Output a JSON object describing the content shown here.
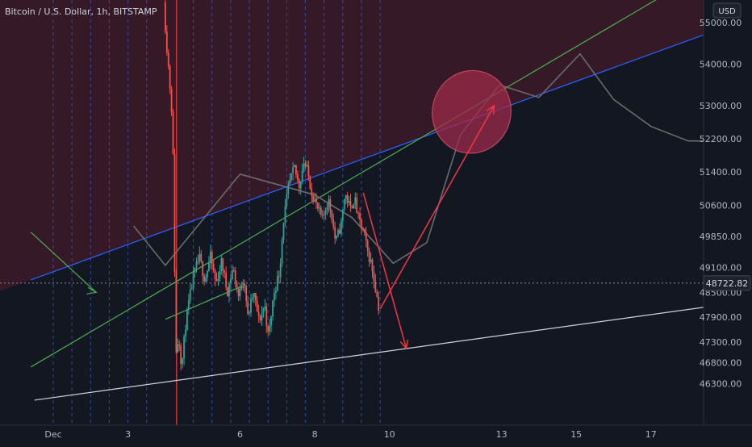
{
  "header": {
    "symbol_title": "Bitcoin / U.S. Dollar, 1h, BITSTAMP"
  },
  "currency_badge": "USD",
  "last_price": {
    "label": "48722.82",
    "value": 48722.82
  },
  "colors": {
    "background": "#131722",
    "shaded_zone": "#3a1a28",
    "candle_up": "#26a69a",
    "candle_down": "#ef5350",
    "blue_line": "#2962ff",
    "green_line": "#4caf50",
    "white_line": "#d1d4dc",
    "red_arrow": "#f23645",
    "projection_line": "#6b6b6b",
    "ellipse_fill": "#9c2a4b",
    "ellipse_stroke": "#c2455f",
    "vertical_guides": "#3a5fcd",
    "red_vertical": "#e53935",
    "last_price_bg": "#1e222d"
  },
  "chart_data": {
    "type": "candlestick",
    "title": "Bitcoin / U.S. Dollar, 1h, BITSTAMP",
    "x_tick_labels": [
      {
        "label": "Dec",
        "day": 1
      },
      {
        "label": "3",
        "day": 3
      },
      {
        "label": "6",
        "day": 6
      },
      {
        "label": "8",
        "day": 8
      },
      {
        "label": "10",
        "day": 10
      },
      {
        "label": "13",
        "day": 13
      },
      {
        "label": "15",
        "day": 15
      },
      {
        "label": "17",
        "day": 17
      }
    ],
    "y_ticks": [
      {
        "label": "55000.00",
        "value": 55000
      },
      {
        "label": "54000.00",
        "value": 54000
      },
      {
        "label": "53000.00",
        "value": 53000
      },
      {
        "label": "52200.00",
        "value": 52200
      },
      {
        "label": "51400.00",
        "value": 51400
      },
      {
        "label": "50600.00",
        "value": 50600
      },
      {
        "label": "49850.00",
        "value": 49850
      },
      {
        "label": "49100.00",
        "value": 49100
      },
      {
        "label": "48500.00",
        "value": 48500
      },
      {
        "label": "47900.00",
        "value": 47900
      },
      {
        "label": "47300.00",
        "value": 47300
      },
      {
        "label": "46800.00",
        "value": 46800
      },
      {
        "label": "46300.00",
        "value": 46300
      }
    ],
    "price_path": [
      [
        4.0,
        55500
      ],
      [
        4.05,
        54800
      ],
      [
        4.1,
        54200
      ],
      [
        4.14,
        53800
      ],
      [
        4.18,
        53300
      ],
      [
        4.22,
        52800
      ],
      [
        4.26,
        51400
      ],
      [
        4.32,
        46950
      ],
      [
        4.4,
        47450
      ],
      [
        4.48,
        46700
      ],
      [
        4.58,
        47700
      ],
      [
        4.68,
        48300
      ],
      [
        4.8,
        48900
      ],
      [
        4.95,
        49350
      ],
      [
        5.1,
        48800
      ],
      [
        5.25,
        49350
      ],
      [
        5.4,
        48700
      ],
      [
        5.55,
        49250
      ],
      [
        5.7,
        48500
      ],
      [
        5.85,
        49100
      ],
      [
        6.0,
        48400
      ],
      [
        6.15,
        48900
      ],
      [
        6.25,
        47900
      ],
      [
        6.4,
        48500
      ],
      [
        6.55,
        47800
      ],
      [
        6.7,
        48200
      ],
      [
        6.8,
        47400
      ],
      [
        6.95,
        48500
      ],
      [
        7.1,
        49000
      ],
      [
        7.2,
        50200
      ],
      [
        7.35,
        51100
      ],
      [
        7.5,
        51500
      ],
      [
        7.62,
        51050
      ],
      [
        7.75,
        51650
      ],
      [
        7.85,
        51400
      ],
      [
        7.95,
        50950
      ],
      [
        8.1,
        50550
      ],
      [
        8.25,
        50250
      ],
      [
        8.4,
        50750
      ],
      [
        8.5,
        50350
      ],
      [
        8.6,
        49700
      ],
      [
        8.75,
        50150
      ],
      [
        8.85,
        50900
      ],
      [
        9.0,
        50500
      ],
      [
        9.1,
        50800
      ],
      [
        9.2,
        50300
      ],
      [
        9.35,
        49950
      ],
      [
        9.45,
        49500
      ],
      [
        9.55,
        49200
      ],
      [
        9.65,
        48700
      ],
      [
        9.75,
        48150
      ]
    ],
    "projection_path": [
      [
        3.15,
        50100
      ],
      [
        4.0,
        49150
      ],
      [
        6.0,
        51350
      ],
      [
        8.0,
        50850
      ],
      [
        9.0,
        50300
      ],
      [
        10.1,
        49200
      ],
      [
        11.0,
        49700
      ],
      [
        11.9,
        52300
      ],
      [
        12.95,
        53500
      ],
      [
        14.0,
        53200
      ],
      [
        15.1,
        54250
      ],
      [
        16.0,
        53150
      ],
      [
        17.0,
        52500
      ],
      [
        18.0,
        52150
      ],
      [
        18.4,
        52150
      ]
    ],
    "trend_lines": [
      {
        "color": "blue",
        "points": [
          [
            0.4,
            48800
          ],
          [
            19.3,
            55000
          ]
        ]
      },
      {
        "color": "green",
        "points": [
          [
            0.4,
            46700
          ],
          [
            17.6,
            55800
          ]
        ]
      },
      {
        "color": "white",
        "points": [
          [
            0.5,
            45900
          ],
          [
            19.3,
            48250
          ]
        ]
      }
    ],
    "green_arrow": {
      "from": [
        0.4,
        49950
      ],
      "to": [
        2.15,
        48500
      ]
    },
    "small_green_segment": {
      "from": [
        4.0,
        47850
      ],
      "to": [
        6.05,
        48650
      ]
    },
    "red_arrows": [
      {
        "from": [
          9.3,
          50900
        ],
        "to": [
          10.45,
          47150
        ]
      },
      {
        "from": [
          9.75,
          48100
        ],
        "to": [
          12.8,
          53000
        ]
      }
    ],
    "target_ellipse": {
      "center": [
        12.2,
        52850
      ],
      "radius_days": 1.05,
      "radius_price": 1000
    },
    "shaded_zone_lower_bound": "blue_line",
    "vertical_guides_days": [
      1.0,
      1.5,
      2.0,
      2.5,
      3.0,
      3.5,
      4.3,
      4.75,
      5.25,
      5.75,
      6.25,
      6.75,
      7.25,
      7.75,
      8.25,
      8.75,
      9.25,
      9.75
    ],
    "red_vertical_day": 4.3,
    "last_price_line": 48722.82
  }
}
